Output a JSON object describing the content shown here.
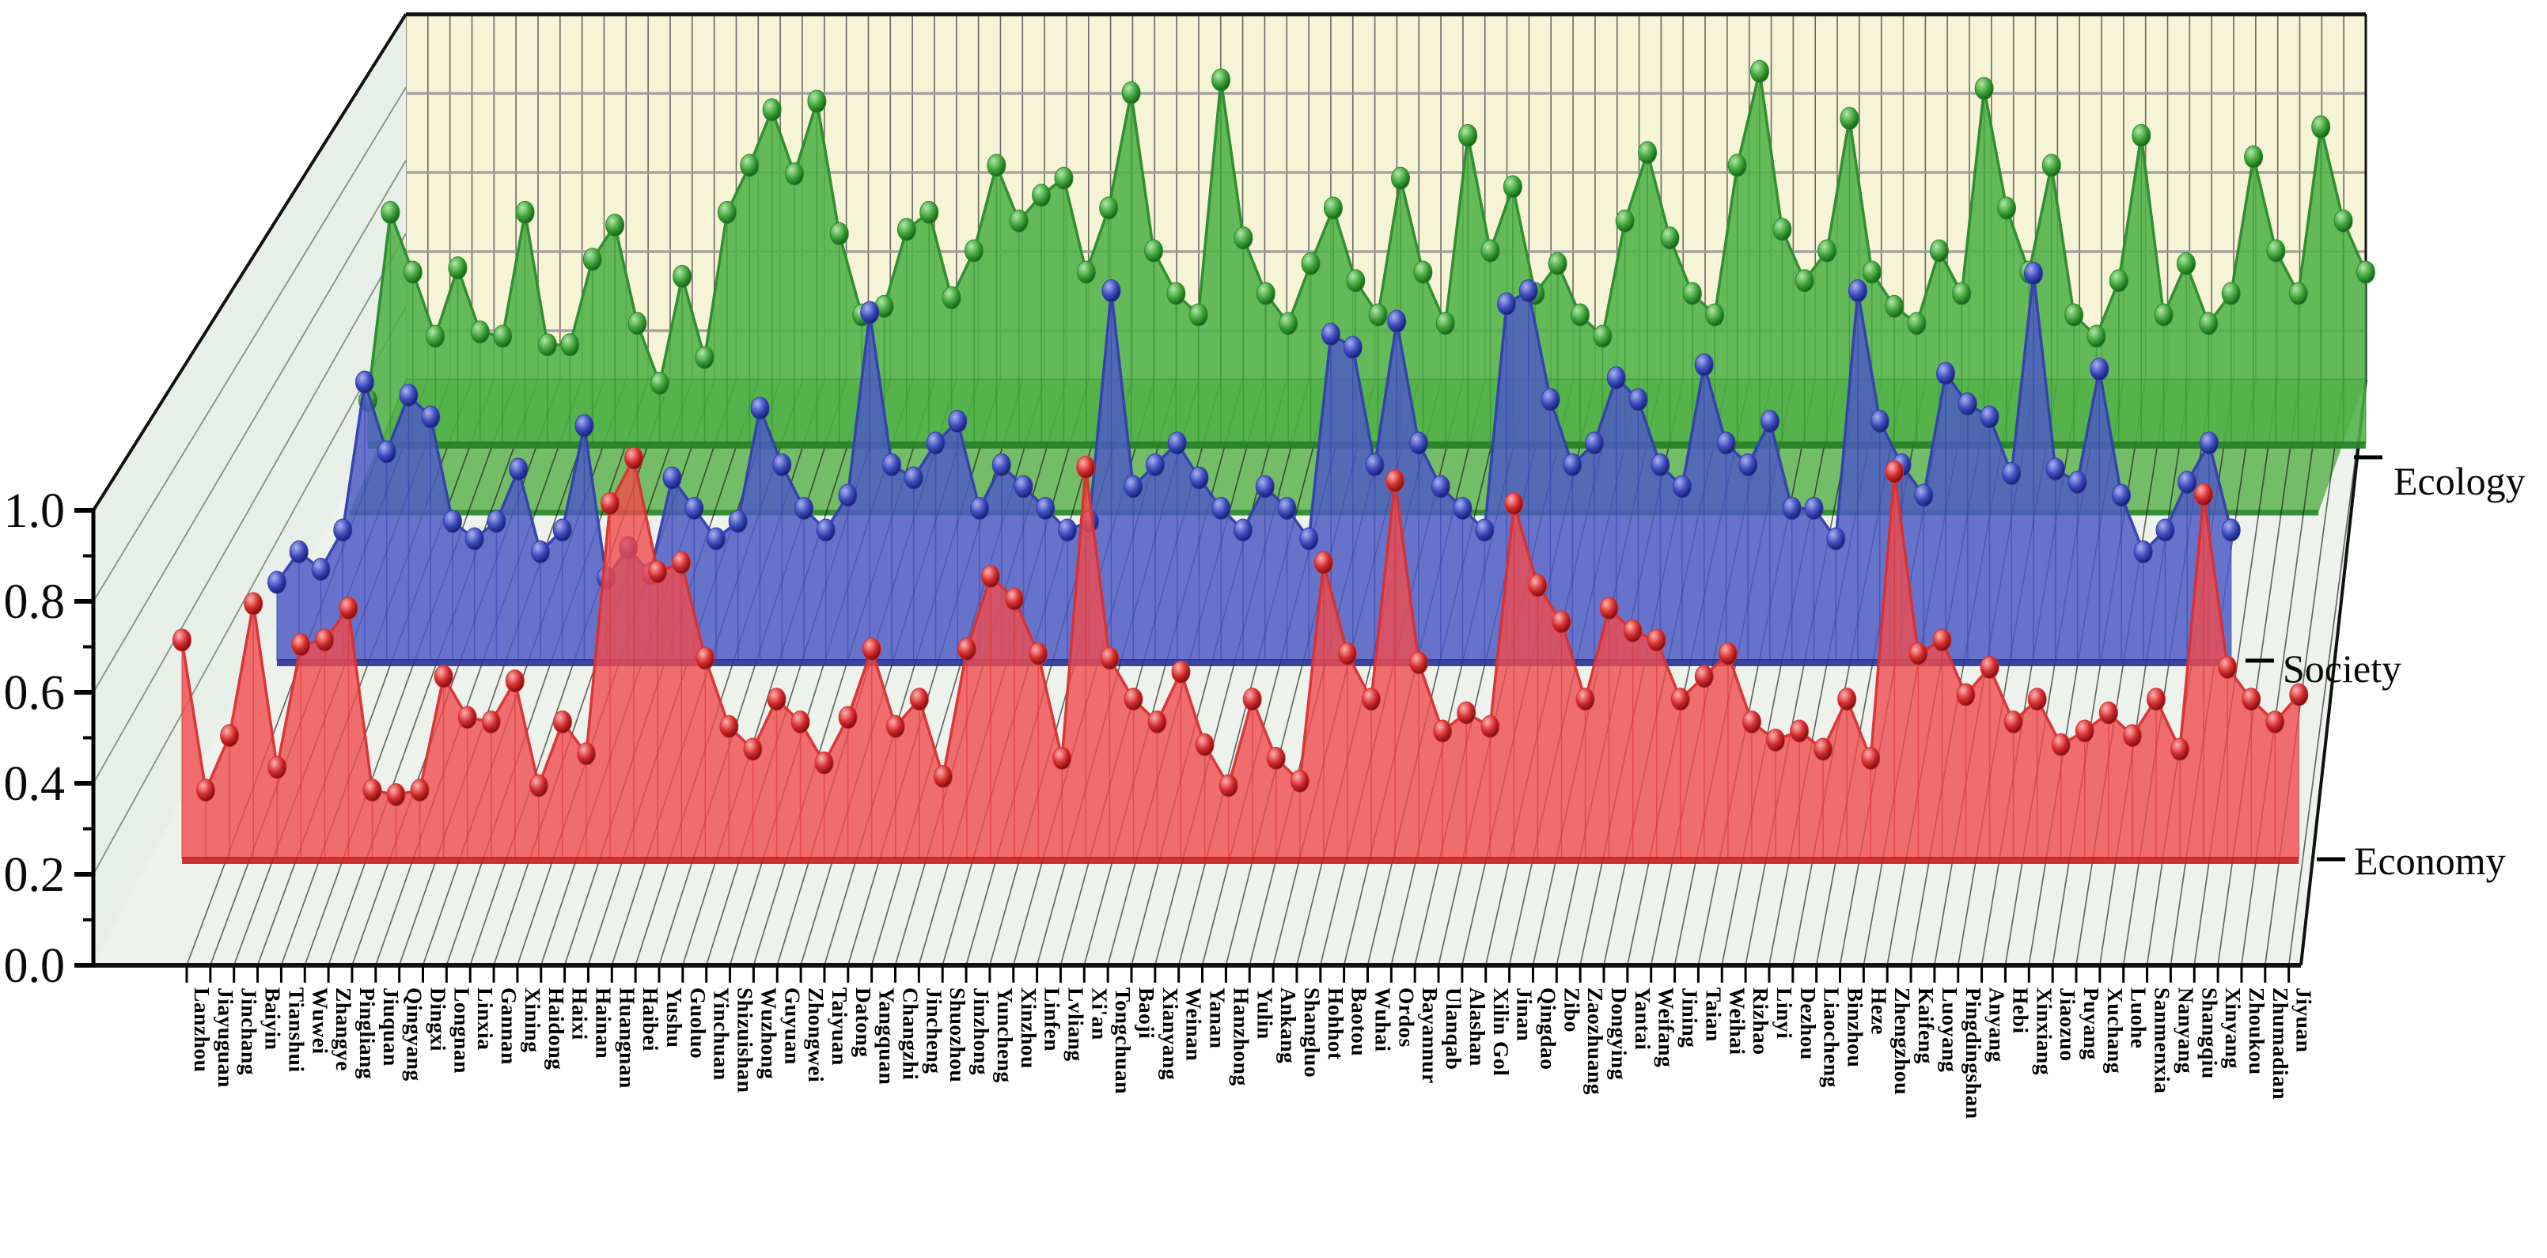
{
  "chart_data": {
    "type": "area",
    "projection": "3d-waterfall",
    "title": "",
    "xlabel": "",
    "ylabel": "",
    "ylim": [
      0,
      1
    ],
    "ytick_labels": [
      "0.0",
      "0.2",
      "0.4",
      "0.6",
      "0.8",
      "1.0"
    ],
    "grid": true,
    "legend_position": "right-edge",
    "categories": [
      "Lanzhou",
      "Jiayuguan",
      "Jinchang",
      "Baiyin",
      "Tianshui",
      "Wuwei",
      "Zhangye",
      "Pingliang",
      "Jiuquan",
      "Qingyang",
      "Dingxi",
      "Longnan",
      "Linxia",
      "Gannan",
      "Xining",
      "Haidong",
      "Haixi",
      "Hainan",
      "Huangnan",
      "Haibei",
      "Yushu",
      "Guoluo",
      "Yinchuan",
      "Shizuishan",
      "Wuzhong",
      "Guyuan",
      "Zhongwei",
      "Taiyuan",
      "Datong",
      "Yangquan",
      "Changzhi",
      "Jincheng",
      "Shuozhou",
      "Jinzhong",
      "Yuncheng",
      "Xinzhou",
      "Linfen",
      "Lvliang",
      "Xi'an",
      "Tongchuan",
      "Baoji",
      "Xianyang",
      "Weinan",
      "Yanan",
      "Hanzhong",
      "Yulin",
      "Ankang",
      "Shangluo",
      "Hohhot",
      "Baotou",
      "Wuhai",
      "Ordos",
      "Bayannur",
      "Ulanqab",
      "Alashan",
      "Xilin Gol",
      "Jinan",
      "Qingdao",
      "Zibo",
      "Zaozhuang",
      "Dongying",
      "Yantai",
      "Weifang",
      "Jining",
      "Taian",
      "Weihai",
      "Rizhao",
      "Linyi",
      "Dezhou",
      "Liaocheng",
      "Binzhou",
      "Heze",
      "Zhengzhou",
      "Kaifeng",
      "Luoyang",
      "Pingdingshan",
      "Anyang",
      "Hebi",
      "Xinxiang",
      "Jiaozuo",
      "Puyang",
      "Xuchang",
      "Luohe",
      "Sanmenxia",
      "Nanyang",
      "Shangqiu",
      "Xinyang",
      "Zhoukou",
      "Zhumadian",
      "Jiyuan"
    ],
    "series": [
      {
        "name": "Economy",
        "color": "#e8393b",
        "values": [
          0.48,
          0.15,
          0.27,
          0.56,
          0.2,
          0.47,
          0.48,
          0.55,
          0.15,
          0.14,
          0.15,
          0.4,
          0.31,
          0.3,
          0.39,
          0.16,
          0.3,
          0.23,
          0.78,
          0.88,
          0.63,
          0.65,
          0.44,
          0.29,
          0.24,
          0.35,
          0.3,
          0.21,
          0.31,
          0.46,
          0.29,
          0.35,
          0.18,
          0.46,
          0.62,
          0.57,
          0.45,
          0.22,
          0.86,
          0.44,
          0.35,
          0.3,
          0.41,
          0.25,
          0.16,
          0.35,
          0.22,
          0.17,
          0.65,
          0.45,
          0.35,
          0.83,
          0.43,
          0.28,
          0.32,
          0.29,
          0.78,
          0.6,
          0.52,
          0.35,
          0.55,
          0.5,
          0.48,
          0.35,
          0.4,
          0.45,
          0.3,
          0.26,
          0.28,
          0.24,
          0.35,
          0.22,
          0.85,
          0.45,
          0.48,
          0.36,
          0.42,
          0.3,
          0.35,
          0.25,
          0.28,
          0.32,
          0.27,
          0.35,
          0.24,
          0.8,
          0.42,
          0.35,
          0.3,
          0.36
        ]
      },
      {
        "name": "Society",
        "color": "#4353c0",
        "values": [
          0.18,
          0.25,
          0.21,
          0.3,
          0.64,
          0.48,
          0.61,
          0.56,
          0.32,
          0.28,
          0.32,
          0.44,
          0.25,
          0.3,
          0.54,
          0.19,
          0.26,
          0.2,
          0.42,
          0.35,
          0.28,
          0.32,
          0.58,
          0.45,
          0.35,
          0.3,
          0.38,
          0.8,
          0.45,
          0.42,
          0.5,
          0.55,
          0.35,
          0.45,
          0.4,
          0.35,
          0.3,
          0.32,
          0.85,
          0.4,
          0.45,
          0.5,
          0.42,
          0.35,
          0.3,
          0.4,
          0.35,
          0.28,
          0.75,
          0.72,
          0.45,
          0.78,
          0.5,
          0.4,
          0.35,
          0.3,
          0.82,
          0.85,
          0.6,
          0.45,
          0.5,
          0.65,
          0.6,
          0.45,
          0.4,
          0.68,
          0.5,
          0.45,
          0.55,
          0.35,
          0.35,
          0.28,
          0.85,
          0.55,
          0.45,
          0.38,
          0.66,
          0.59,
          0.56,
          0.43,
          0.89,
          0.44,
          0.41,
          0.67,
          0.38,
          0.25,
          0.3,
          0.41,
          0.5,
          0.3
        ]
      },
      {
        "name": "Ecology",
        "color": "#3fa339",
        "values": [
          0.1,
          0.54,
          0.4,
          0.25,
          0.41,
          0.26,
          0.25,
          0.54,
          0.23,
          0.23,
          0.43,
          0.51,
          0.28,
          0.14,
          0.39,
          0.2,
          0.54,
          0.65,
          0.78,
          0.63,
          0.8,
          0.49,
          0.3,
          0.32,
          0.5,
          0.54,
          0.34,
          0.45,
          0.65,
          0.52,
          0.58,
          0.62,
          0.4,
          0.55,
          0.82,
          0.45,
          0.35,
          0.3,
          0.85,
          0.48,
          0.35,
          0.28,
          0.42,
          0.55,
          0.38,
          0.3,
          0.62,
          0.4,
          0.28,
          0.72,
          0.45,
          0.6,
          0.35,
          0.42,
          0.3,
          0.25,
          0.52,
          0.68,
          0.48,
          0.35,
          0.3,
          0.65,
          0.87,
          0.5,
          0.38,
          0.45,
          0.76,
          0.4,
          0.32,
          0.28,
          0.45,
          0.35,
          0.83,
          0.55,
          0.4,
          0.65,
          0.3,
          0.25,
          0.38,
          0.72,
          0.3,
          0.42,
          0.28,
          0.35,
          0.67,
          0.45,
          0.35,
          0.74,
          0.52,
          0.4
        ]
      }
    ],
    "series_axis_labels": [
      "Ecology",
      "Society",
      "Economy"
    ]
  },
  "colors": {
    "back_wall": "#f7f3d6",
    "back_wall_grid_v": "#3c3c3c",
    "back_wall_grid_h": "#9a9a9a",
    "left_wall": "#e8eee8",
    "floor": "#edf2ec",
    "hatch": "#141414",
    "green_band": "#66b659",
    "economy_fill": "#f04b4e",
    "society_fill": "#4e5ac4",
    "ecology_fill": "#50b248",
    "axis": "#000000"
  }
}
